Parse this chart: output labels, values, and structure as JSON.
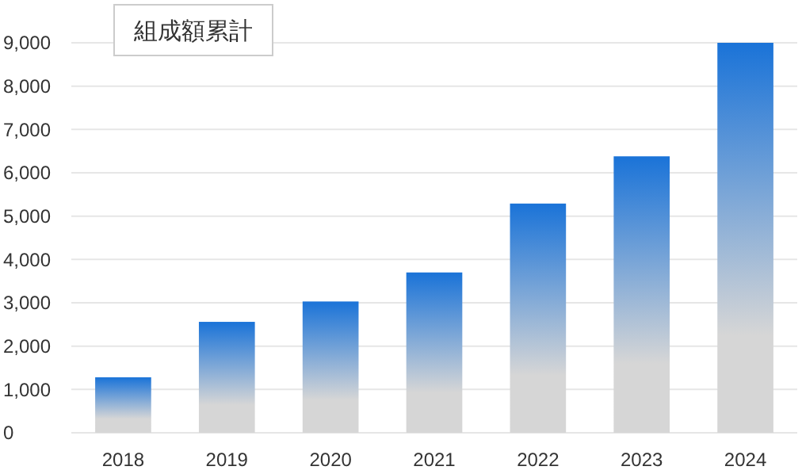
{
  "chart_data": {
    "type": "bar",
    "title": "組成額累計",
    "categories": [
      "2018",
      "2019",
      "2020",
      "2021",
      "2022",
      "2023",
      "2024"
    ],
    "values": [
      1280,
      2560,
      3030,
      3700,
      5290,
      6380,
      9000
    ],
    "color": "#1a73d8",
    "ylim": [
      0,
      9000
    ],
    "yticks": [
      {
        "value": 0,
        "label": "0"
      },
      {
        "value": 1000,
        "label": "1,000"
      },
      {
        "value": 2000,
        "label": "2,000"
      },
      {
        "value": 3000,
        "label": "3,000"
      },
      {
        "value": 4000,
        "label": "4,000"
      },
      {
        "value": 5000,
        "label": "5,000"
      },
      {
        "value": 6000,
        "label": "6,000"
      },
      {
        "value": 7000,
        "label": "7,000"
      },
      {
        "value": 8000,
        "label": "8,000"
      },
      {
        "value": 9000,
        "label": "9,000"
      }
    ],
    "grid": "y"
  }
}
